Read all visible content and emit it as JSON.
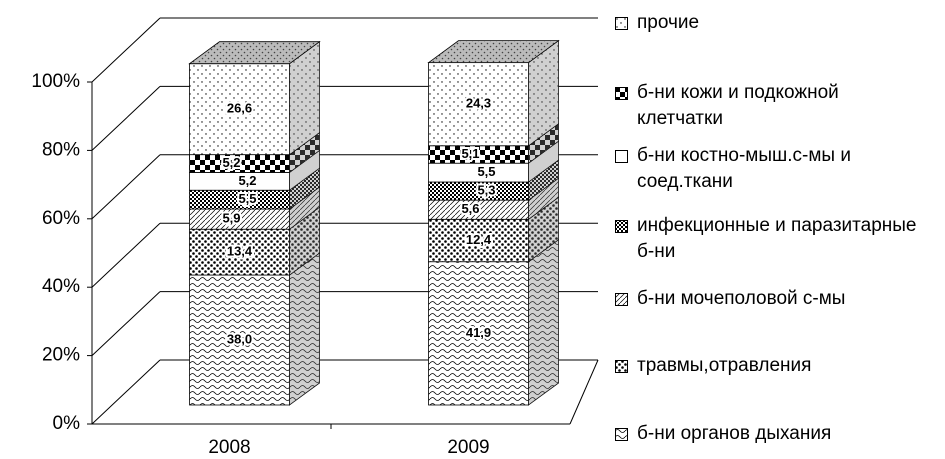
{
  "chart_data": {
    "type": "stacked-bar-3d",
    "categories": [
      "2008",
      "2009"
    ],
    "series": [
      {
        "name": "б-ни органов дыхания",
        "values": [
          38.0,
          41.9
        ],
        "value_labels": [
          "38,0",
          "41,9"
        ]
      },
      {
        "name": "травмы,отравления",
        "values": [
          13.4,
          12.4
        ],
        "value_labels": [
          "13,4",
          "12,4"
        ]
      },
      {
        "name": "б-ни мочеполовой с-мы",
        "values": [
          5.9,
          5.6
        ],
        "value_labels": [
          "5,9",
          "5,6"
        ]
      },
      {
        "name": "инфекционные и паразитарные б-ни",
        "values": [
          5.5,
          5.3
        ],
        "value_labels": [
          "5,5",
          "5,3"
        ]
      },
      {
        "name": "б-ни костно-мыш.с-мы и соед.ткани",
        "values": [
          5.2,
          5.5
        ],
        "value_labels": [
          "5,2",
          "5,5"
        ]
      },
      {
        "name": "б-ни кожи и подкожной клетчатки",
        "values": [
          5.2,
          5.1
        ],
        "value_labels": [
          "5,2",
          "5,1"
        ]
      },
      {
        "name": "прочие",
        "values": [
          26.6,
          24.3
        ],
        "value_labels": [
          "26,6",
          "24,3"
        ]
      }
    ],
    "ylim": [
      0,
      100
    ],
    "yticks": [
      {
        "value": 0,
        "label": "0%"
      },
      {
        "value": 20,
        "label": "20%"
      },
      {
        "value": 40,
        "label": "40%"
      },
      {
        "value": 60,
        "label": "60%"
      },
      {
        "value": 80,
        "label": "80%"
      },
      {
        "value": 100,
        "label": "100%"
      }
    ],
    "grid": true,
    "legend": "right"
  }
}
